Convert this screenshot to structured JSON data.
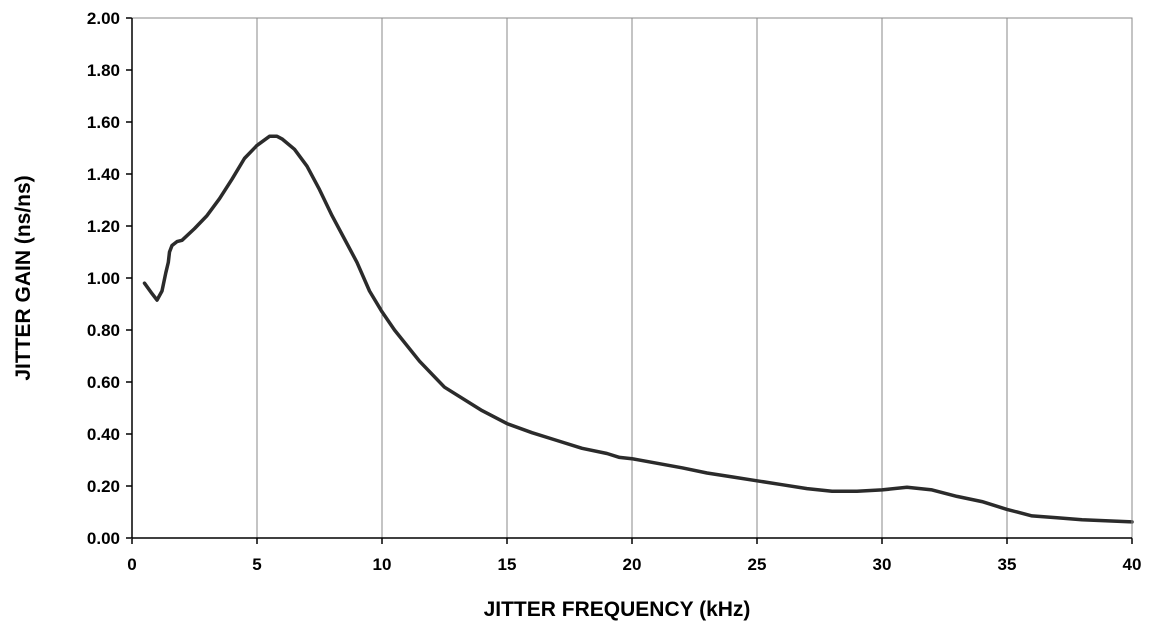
{
  "chart_data": {
    "type": "line",
    "title": "",
    "xlabel": "JITTER FREQUENCY (kHz)",
    "ylabel": "JITTER GAIN (ns/ns)",
    "xlim": [
      0,
      40
    ],
    "ylim": [
      0,
      2
    ],
    "x_ticks": [
      "0",
      "5",
      "10",
      "15",
      "20",
      "25",
      "30",
      "35",
      "40"
    ],
    "y_ticks": [
      "0.00",
      "0.20",
      "0.40",
      "0.60",
      "0.80",
      "1.00",
      "1.20",
      "1.40",
      "1.60",
      "1.80",
      "2.00"
    ],
    "grid": "vertical",
    "line_color": "#2b2b2b",
    "series": [
      {
        "x": [
          0.5,
          0.8,
          1.0,
          1.2,
          1.35,
          1.45,
          1.5,
          1.6,
          1.8,
          2.0,
          2.5,
          3.0,
          3.5,
          4.0,
          4.5,
          5.0,
          5.5,
          5.8,
          6.0,
          6.5,
          7.0,
          7.5,
          8.0,
          8.5,
          9.0,
          9.5,
          10.0,
          10.5,
          11.5,
          12.5,
          14.0,
          15.0,
          16.0,
          17.0,
          18.0,
          19.0,
          19.5,
          20.0,
          22.0,
          23.0,
          24.0,
          25.0,
          26.0,
          27.0,
          28.0,
          29.0,
          30.0,
          31.0,
          32.0,
          33.0,
          34.0,
          35.0,
          36.0,
          37.0,
          38.0,
          40.0
        ],
        "y": [
          0.98,
          0.94,
          0.915,
          0.95,
          1.02,
          1.06,
          1.1,
          1.125,
          1.14,
          1.145,
          1.19,
          1.24,
          1.305,
          1.38,
          1.46,
          1.51,
          1.545,
          1.545,
          1.535,
          1.495,
          1.43,
          1.34,
          1.24,
          1.15,
          1.06,
          0.95,
          0.87,
          0.8,
          0.68,
          0.58,
          0.49,
          0.44,
          0.405,
          0.375,
          0.345,
          0.325,
          0.31,
          0.305,
          0.27,
          0.25,
          0.235,
          0.22,
          0.205,
          0.19,
          0.18,
          0.18,
          0.185,
          0.195,
          0.185,
          0.16,
          0.14,
          0.11,
          0.085,
          0.078,
          0.07,
          0.062
        ]
      }
    ]
  }
}
